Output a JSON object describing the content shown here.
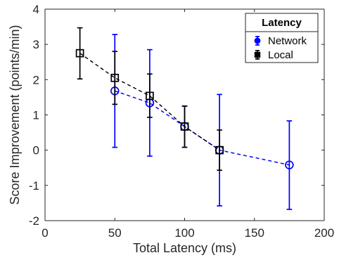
{
  "chart_data": {
    "type": "line",
    "xlabel": "Total Latency (ms)",
    "ylabel": "Score Improvement (points/min)",
    "xlim": [
      0,
      200
    ],
    "ylim": [
      -2,
      4
    ],
    "xticks": [
      0,
      50,
      100,
      150,
      200
    ],
    "yticks": [
      -2,
      -1,
      0,
      1,
      2,
      3,
      4
    ],
    "grid": false,
    "legend": {
      "title": "Latency",
      "placement": "top-right"
    },
    "series": [
      {
        "name": "Network",
        "color": "#0000ff",
        "marker": "circle",
        "line_style": "dashed",
        "x": [
          50,
          75,
          100,
          125,
          175
        ],
        "y": [
          1.68,
          1.34,
          0.67,
          0.0,
          -0.42
        ],
        "error_low": [
          0.08,
          -0.17,
          0.08,
          -1.58,
          -1.68
        ],
        "error_high": [
          3.28,
          2.85,
          1.25,
          1.58,
          0.83
        ]
      },
      {
        "name": "Local",
        "color": "#000000",
        "marker": "square",
        "line_style": "dashed",
        "x": [
          25,
          50,
          75,
          100,
          125
        ],
        "y": [
          2.75,
          2.05,
          1.54,
          0.67,
          0.0
        ],
        "error_low": [
          2.02,
          1.3,
          0.93,
          0.08,
          -0.57
        ],
        "error_high": [
          3.47,
          2.8,
          2.16,
          1.25,
          0.57
        ]
      }
    ]
  }
}
